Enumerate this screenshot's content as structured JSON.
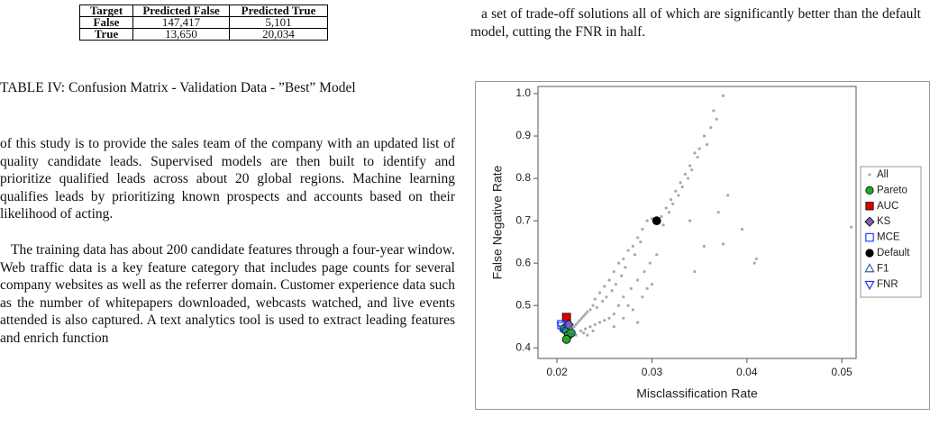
{
  "table": {
    "header": [
      "Target",
      "Predicted False",
      "Predicted True"
    ],
    "rows": [
      [
        "False",
        "147,417",
        "5,101"
      ],
      [
        "True",
        "13,650",
        "20,034"
      ]
    ],
    "caption": "TABLE IV: Confusion Matrix - Validation Data - ”Best” Model"
  },
  "left_paragraphs": [
    "of this study is to provide the sales team of the company with an updated list of quality candidate leads. Supervised models are then built to identify and prioritize qualified leads across about 20 global regions. Machine learning qualifies leads by prioritizing known prospects and accounts based on their likelihood of acting.",
    "The training data has about 200 candidate features through a four-year window. Web traffic data is a key feature category that includes page counts for several company websites as well as the referrer domain. Customer experience data such as the number of whitepapers downloaded, webcasts watched, and live events attended is also captured. A text analytics tool is used to extract leading features and enrich function"
  ],
  "right_paragraph": "a set of trade-off solutions all of which are significantly better than the default model, cutting the FNR in half.",
  "chart_data": {
    "type": "scatter",
    "x_label": "Misclassification Rate",
    "y_label": "False Negative Rate",
    "xlim": [
      0.018,
      0.0515
    ],
    "ylim": [
      0.375,
      1.017
    ],
    "xticks": [
      0.02,
      0.03,
      0.04,
      0.05
    ],
    "yticks": [
      0.4,
      0.5,
      0.6,
      0.7,
      0.8,
      0.9,
      {
        "value": 1,
        "label": "1.0"
      }
    ],
    "legend": "right",
    "series": [
      {
        "name": "All",
        "color": "#aaaaaa",
        "marker": "dot",
        "x": [
          0.0375,
          0.0365,
          0.0368,
          0.0362,
          0.0355,
          0.0358,
          0.035,
          0.0345,
          0.0348,
          0.034,
          0.0342,
          0.0335,
          0.0338,
          0.033,
          0.0332,
          0.0325,
          0.0328,
          0.032,
          0.0322,
          0.0315,
          0.0318,
          0.031,
          0.03,
          0.0295,
          0.0312,
          0.029,
          0.0285,
          0.0288,
          0.028,
          0.0275,
          0.0282,
          0.027,
          0.0265,
          0.0272,
          0.026,
          0.0268,
          0.0255,
          0.0262,
          0.025,
          0.0258,
          0.0245,
          0.0252,
          0.024,
          0.0248,
          0.0238,
          0.0242,
          0.0235,
          0.0232,
          0.023,
          0.0228,
          0.0226,
          0.0224,
          0.0222,
          0.022,
          0.0218,
          0.0216,
          0.0214,
          0.0225,
          0.023,
          0.0235,
          0.024,
          0.0245,
          0.025,
          0.0255,
          0.0228,
          0.0232,
          0.0238,
          0.026,
          0.0265,
          0.027,
          0.0278,
          0.0285,
          0.0292,
          0.0298,
          0.0305,
          0.0275,
          0.028,
          0.029,
          0.0295,
          0.03,
          0.026,
          0.027,
          0.0285,
          0.022,
          0.0212,
          0.0345,
          0.0355,
          0.0375,
          0.0395,
          0.041,
          0.0408,
          0.051,
          0.038,
          0.037,
          0.034
        ],
        "y": [
          0.995,
          0.96,
          0.94,
          0.92,
          0.9,
          0.88,
          0.87,
          0.86,
          0.85,
          0.83,
          0.82,
          0.81,
          0.8,
          0.79,
          0.78,
          0.77,
          0.76,
          0.75,
          0.74,
          0.73,
          0.72,
          0.71,
          0.705,
          0.7,
          0.69,
          0.68,
          0.66,
          0.65,
          0.64,
          0.63,
          0.62,
          0.61,
          0.6,
          0.59,
          0.58,
          0.57,
          0.56,
          0.55,
          0.545,
          0.535,
          0.53,
          0.52,
          0.515,
          0.51,
          0.5,
          0.495,
          0.49,
          0.485,
          0.48,
          0.475,
          0.47,
          0.465,
          0.46,
          0.455,
          0.45,
          0.445,
          0.44,
          0.44,
          0.445,
          0.45,
          0.455,
          0.46,
          0.465,
          0.47,
          0.435,
          0.43,
          0.44,
          0.48,
          0.5,
          0.52,
          0.54,
          0.56,
          0.58,
          0.6,
          0.62,
          0.5,
          0.49,
          0.52,
          0.54,
          0.55,
          0.45,
          0.47,
          0.46,
          0.43,
          0.43,
          0.58,
          0.64,
          0.645,
          0.68,
          0.61,
          0.6,
          0.685,
          0.76,
          0.72,
          0.7
        ]
      },
      {
        "name": "Pareto",
        "color": "#22aa22",
        "marker": "circle",
        "x": [
          0.0207,
          0.021,
          0.0212,
          0.021,
          0.0215
        ],
        "y": [
          0.445,
          0.44,
          0.43,
          0.42,
          0.435
        ]
      },
      {
        "name": "AUC",
        "color": "#dd0000",
        "marker": "square",
        "x": [
          0.021
        ],
        "y": [
          0.472
        ]
      },
      {
        "name": "KS",
        "color": "#8060b0",
        "marker": "diamond",
        "x": [
          0.0212
        ],
        "y": [
          0.455
        ]
      },
      {
        "name": "MCE",
        "color": "#2040ff",
        "marker": "open-square",
        "x": [
          0.0205
        ],
        "y": [
          0.455
        ]
      },
      {
        "name": "Default",
        "color": "#000000",
        "marker": "circle",
        "x": [
          0.0305
        ],
        "y": [
          0.7
        ]
      },
      {
        "name": "F1",
        "color": "#336699",
        "marker": "triangle",
        "x": [
          0.0215
        ],
        "y": [
          0.44
        ]
      },
      {
        "name": "FNR",
        "color": "#2030ff",
        "marker": "triangle-down",
        "x": [
          0.0205
        ],
        "y": [
          0.452
        ]
      }
    ]
  }
}
